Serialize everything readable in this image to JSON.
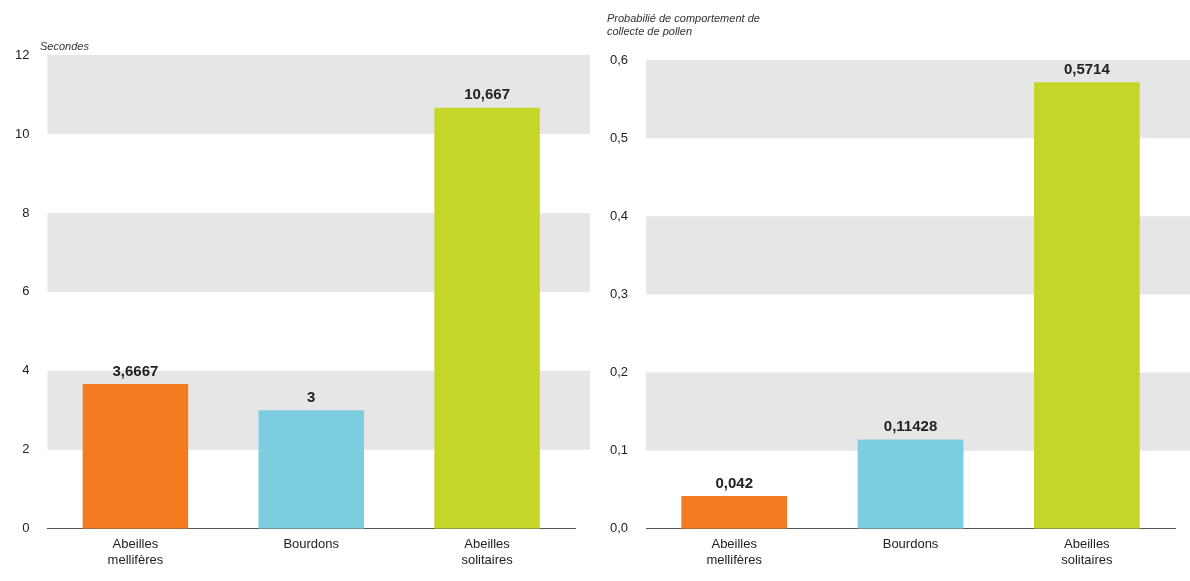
{
  "chart_data": [
    {
      "type": "bar",
      "ylabel": "Secondes",
      "categories": [
        "Abeilles mellifères",
        "Bourdons",
        "Abeilles solitaires"
      ],
      "values": [
        3.6667,
        3,
        10.667
      ],
      "colors": [
        "#f47b20",
        "#7ccde0",
        "#c5d62b"
      ],
      "value_labels": [
        "3,6667",
        "3",
        "10,667"
      ],
      "ylim": [
        0,
        12
      ],
      "yticks": [
        0,
        2,
        4,
        6,
        8,
        10,
        12
      ],
      "bands": [
        {
          "axis": "y",
          "from": 2,
          "to": 4,
          "color": "#e6e6e6"
        },
        {
          "axis": "y",
          "from": 6,
          "to": 8,
          "color": "#e6e6e6"
        },
        {
          "axis": "y",
          "from": 10,
          "to": 12,
          "color": "#e6e6e6"
        }
      ]
    },
    {
      "type": "bar",
      "ylabel": "Probabilié de comportement de collecte de pollen",
      "categories": [
        "Abeilles mellifères",
        "Bourdons",
        "Abeilles solitaires"
      ],
      "values": [
        0.042,
        0.11428,
        0.5714
      ],
      "colors": [
        "#f47b20",
        "#7ccde0",
        "#c5d62b"
      ],
      "value_labels": [
        "0,042",
        "0,11428",
        "0,5714"
      ],
      "ylim": [
        0,
        0.6
      ],
      "yticks": [
        {
          "value": 0,
          "label": "0,0"
        },
        {
          "value": 0.1,
          "label": "0,1"
        },
        {
          "value": 0.2,
          "label": "0,2"
        },
        {
          "value": 0.3,
          "label": "0,3"
        },
        {
          "value": 0.4,
          "label": "0,4"
        },
        {
          "value": 0.5,
          "label": "0,5"
        },
        {
          "value": 0.6,
          "label": "0,6"
        }
      ],
      "bands": [
        {
          "axis": "y",
          "from": 0.1,
          "to": 0.2,
          "color": "#e6e6e6"
        },
        {
          "axis": "y",
          "from": 0.3,
          "to": 0.4,
          "color": "#e6e6e6"
        },
        {
          "axis": "y",
          "from": 0.5,
          "to": 0.6,
          "color": "#e6e6e6"
        }
      ]
    }
  ]
}
